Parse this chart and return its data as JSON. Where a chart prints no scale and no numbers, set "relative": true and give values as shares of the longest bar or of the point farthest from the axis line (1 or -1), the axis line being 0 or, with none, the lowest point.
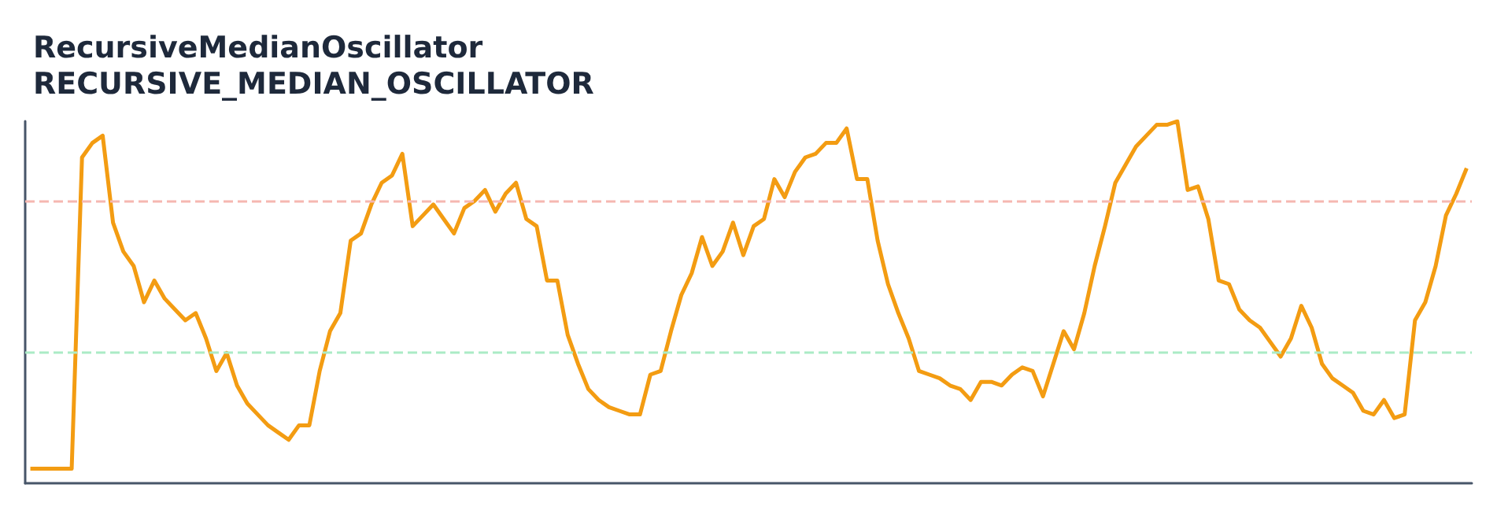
{
  "chart_data": {
    "type": "line",
    "title": "RecursiveMedianOscillator",
    "subtitle": "RECURSIVE_MEDIAN_OSCILLATOR",
    "relative": true,
    "grid": false,
    "marker": "none",
    "line_style": "solid",
    "categories": [
      null,
      null,
      null,
      null,
      null,
      null,
      null,
      null,
      null,
      null,
      null,
      null,
      null,
      null,
      null,
      null,
      null,
      null,
      null,
      null,
      null,
      null,
      null,
      null,
      null,
      null,
      null,
      null,
      null,
      null,
      null,
      null,
      null,
      null,
      null,
      null,
      null,
      null,
      null,
      null,
      null,
      null,
      null,
      null,
      null,
      null,
      null,
      null,
      null,
      null,
      null,
      null,
      null,
      null,
      null,
      null,
      null,
      null,
      null,
      null,
      null,
      null,
      null,
      null,
      null,
      null,
      null,
      null,
      null,
      null,
      null,
      null,
      null,
      null,
      null,
      null,
      null,
      null,
      null,
      null,
      null,
      null,
      null,
      null,
      null,
      null,
      null,
      null,
      null,
      null,
      null,
      null,
      null,
      null,
      null,
      null,
      null,
      null,
      null,
      null,
      null,
      null,
      null,
      null,
      null,
      null,
      null,
      null,
      null,
      null,
      null,
      null,
      null,
      null,
      null,
      null,
      null,
      null,
      null,
      null,
      null,
      null,
      null,
      null,
      null,
      null,
      null,
      null,
      null,
      null,
      null,
      null,
      null,
      null,
      null,
      null,
      null,
      null,
      null,
      null
    ],
    "series": [
      {
        "color": "#f39c12",
        "values": [
          0.04,
          0.04,
          0.04,
          0.04,
          0.04,
          0.9,
          0.94,
          0.96,
          0.72,
          0.64,
          0.6,
          0.5,
          0.56,
          0.51,
          0.48,
          0.45,
          0.47,
          0.4,
          0.31,
          0.36,
          0.27,
          0.22,
          0.19,
          0.16,
          0.14,
          0.12,
          0.16,
          0.16,
          0.31,
          0.42,
          0.47,
          0.67,
          0.69,
          0.77,
          0.83,
          0.85,
          0.91,
          0.71,
          0.74,
          0.77,
          0.73,
          0.69,
          0.76,
          0.78,
          0.81,
          0.75,
          0.8,
          0.83,
          0.73,
          0.71,
          0.56,
          0.56,
          0.41,
          0.33,
          0.26,
          0.23,
          0.21,
          0.2,
          0.19,
          0.19,
          0.3,
          0.31,
          0.42,
          0.52,
          0.58,
          0.68,
          0.6,
          0.64,
          0.72,
          0.63,
          0.71,
          0.73,
          0.84,
          0.79,
          0.86,
          0.9,
          0.91,
          0.94,
          0.94,
          0.98,
          0.84,
          0.84,
          0.67,
          0.55,
          0.47,
          0.4,
          0.31,
          0.3,
          0.29,
          0.27,
          0.26,
          0.23,
          0.28,
          0.28,
          0.27,
          0.3,
          0.32,
          0.31,
          0.24,
          0.33,
          0.42,
          0.37,
          0.47,
          0.6,
          0.71,
          0.83,
          0.88,
          0.93,
          0.96,
          0.99,
          0.99,
          1,
          0.81,
          0.82,
          0.73,
          0.56,
          0.55,
          0.48,
          0.45,
          0.43,
          0.39,
          0.35,
          0.4,
          0.49,
          0.43,
          0.33,
          0.29,
          0.27,
          0.25,
          0.2,
          0.19,
          0.23,
          0.18,
          0.19,
          0.45,
          0.5,
          0.6,
          0.74,
          0.8,
          0.87
        ]
      }
    ],
    "ref_lines": [
      {
        "axis": "y",
        "value": 0.78,
        "color": "#f5b7b1",
        "line_style": "dashed"
      },
      {
        "axis": "y",
        "value": 0.36,
        "color": "#abebc6",
        "line_style": "dashed"
      }
    ]
  }
}
